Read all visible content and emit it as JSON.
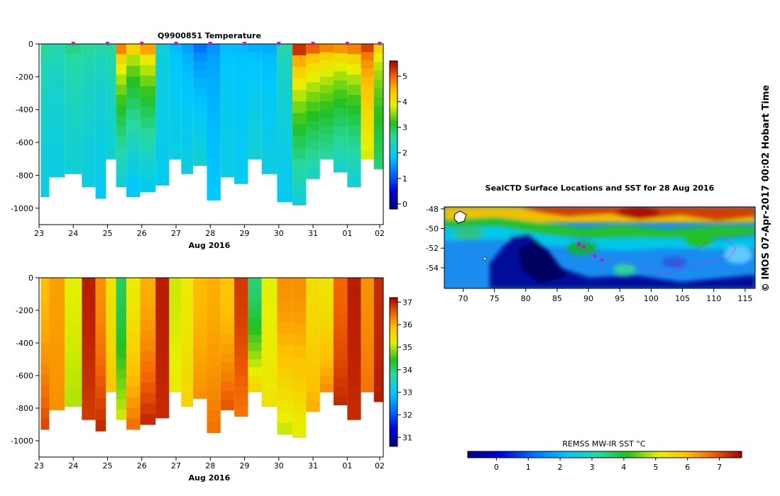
{
  "chart_data": [
    {
      "type": "heatmap",
      "title": "Q9900851  Temperature",
      "xlabel": "Aug 2016",
      "x_ticks": [
        "23",
        "24",
        "25",
        "26",
        "27",
        "28",
        "29",
        "30",
        "31",
        "01",
        "02"
      ],
      "y_ticks": [
        "0",
        "-200",
        "-400",
        "-600",
        "-800",
        "-1000"
      ],
      "ylim": [
        -1100,
        0
      ],
      "colorbar": {
        "ticks": [
          "0",
          "1",
          "2",
          "3",
          "4",
          "5"
        ],
        "range": [
          -0.2,
          5.6
        ]
      },
      "profiles": [
        {
          "x": 23.1,
          "bottom": -930,
          "top_value": 2.6,
          "deep_value": 2.1
        },
        {
          "x": 23.5,
          "bottom": -810,
          "top_value": 2.5,
          "deep_value": 2.1
        },
        {
          "x": 24.0,
          "bottom": -790,
          "top_value": 2.7,
          "deep_value": 2.2
        },
        {
          "x": 24.5,
          "bottom": -870,
          "top_value": 2.6,
          "deep_value": 2.1
        },
        {
          "x": 24.8,
          "bottom": -940,
          "top_value": 2.5,
          "deep_value": 2.0
        },
        {
          "x": 25.1,
          "bottom": -700,
          "top_value": 2.6,
          "deep_value": 2.2
        },
        {
          "x": 25.4,
          "bottom": -870,
          "top_value": 4.8,
          "deep_value": 2.2
        },
        {
          "x": 25.7,
          "bottom": -930,
          "top_value": 4.2,
          "deep_value": 1.9
        },
        {
          "x": 26.2,
          "bottom": -900,
          "top_value": 4.6,
          "deep_value": 2.0
        },
        {
          "x": 26.6,
          "bottom": -860,
          "top_value": 2.2,
          "deep_value": 2.0
        },
        {
          "x": 27.0,
          "bottom": -700,
          "top_value": 1.8,
          "deep_value": 2.1
        },
        {
          "x": 27.3,
          "bottom": -790,
          "top_value": 1.6,
          "deep_value": 2.1
        },
        {
          "x": 27.7,
          "bottom": -740,
          "top_value": 1.2,
          "deep_value": 2.2
        },
        {
          "x": 28.1,
          "bottom": -950,
          "top_value": 1.5,
          "deep_value": 1.9
        },
        {
          "x": 28.5,
          "bottom": -810,
          "top_value": 1.8,
          "deep_value": 2.1
        },
        {
          "x": 28.9,
          "bottom": -850,
          "top_value": 1.8,
          "deep_value": 2.0
        },
        {
          "x": 29.3,
          "bottom": -700,
          "top_value": 1.7,
          "deep_value": 2.2
        },
        {
          "x": 29.7,
          "bottom": -790,
          "top_value": 1.7,
          "deep_value": 2.1
        },
        {
          "x": 30.2,
          "bottom": -960,
          "top_value": 2.5,
          "deep_value": 2.0
        },
        {
          "x": 30.6,
          "bottom": -980,
          "top_value": 5.3,
          "deep_value": 2.2
        },
        {
          "x": 31.0,
          "bottom": -820,
          "top_value": 5.0,
          "deep_value": 2.4
        },
        {
          "x": 31.4,
          "bottom": -700,
          "top_value": 4.8,
          "deep_value": 2.6
        },
        {
          "x": 31.8,
          "bottom": -780,
          "top_value": 4.7,
          "deep_value": 2.3
        },
        {
          "x": 32.2,
          "bottom": -870,
          "top_value": 4.8,
          "deep_value": 2.2
        },
        {
          "x": 32.6,
          "bottom": -700,
          "top_value": 5.2,
          "deep_value": 3.8
        },
        {
          "x": 32.95,
          "bottom": -760,
          "top_value": 4.2,
          "deep_value": 2.8
        }
      ]
    },
    {
      "type": "heatmap",
      "title": "",
      "xlabel": "Aug 2016",
      "x_ticks": [
        "23",
        "24",
        "25",
        "26",
        "27",
        "28",
        "29",
        "30",
        "31",
        "01",
        "02"
      ],
      "y_ticks": [
        "0",
        "-200",
        "-400",
        "-600",
        "-800",
        "-1000"
      ],
      "ylim": [
        -1100,
        0
      ],
      "colorbar": {
        "ticks": [
          "31",
          "32",
          "33",
          "34",
          "35",
          "36",
          "37"
        ],
        "range": [
          30.6,
          37.2
        ]
      },
      "profiles": [
        {
          "x": 23.1,
          "bottom": -930,
          "top_value": 35.9,
          "deep_value": 36.7
        },
        {
          "x": 23.5,
          "bottom": -810,
          "top_value": 36.1,
          "deep_value": 36.2
        },
        {
          "x": 24.0,
          "bottom": -790,
          "top_value": 35.2,
          "deep_value": 35.0
        },
        {
          "x": 24.5,
          "bottom": -870,
          "top_value": 37.0,
          "deep_value": 36.8
        },
        {
          "x": 24.8,
          "bottom": -940,
          "top_value": 36.2,
          "deep_value": 36.9
        },
        {
          "x": 25.1,
          "bottom": -700,
          "top_value": 35.4,
          "deep_value": 35.8
        },
        {
          "x": 25.4,
          "bottom": -870,
          "top_value": 34.1,
          "deep_value": 35.1
        },
        {
          "x": 25.7,
          "bottom": -930,
          "top_value": 35.3,
          "deep_value": 36.4
        },
        {
          "x": 26.2,
          "bottom": -900,
          "top_value": 36.0,
          "deep_value": 36.9
        },
        {
          "x": 26.6,
          "bottom": -860,
          "top_value": 37.0,
          "deep_value": 36.9
        },
        {
          "x": 27.0,
          "bottom": -700,
          "top_value": 35.1,
          "deep_value": 35.3
        },
        {
          "x": 27.3,
          "bottom": -790,
          "top_value": 35.3,
          "deep_value": 35.6
        },
        {
          "x": 27.7,
          "bottom": -740,
          "top_value": 35.9,
          "deep_value": 36.2
        },
        {
          "x": 28.1,
          "bottom": -950,
          "top_value": 36.0,
          "deep_value": 36.4
        },
        {
          "x": 28.5,
          "bottom": -810,
          "top_value": 35.8,
          "deep_value": 36.6
        },
        {
          "x": 28.9,
          "bottom": -850,
          "top_value": 36.8,
          "deep_value": 36.4
        },
        {
          "x": 29.3,
          "bottom": -700,
          "top_value": 34.0,
          "deep_value": 35.6
        },
        {
          "x": 29.7,
          "bottom": -790,
          "top_value": 35.2,
          "deep_value": 35.4
        },
        {
          "x": 30.2,
          "bottom": -960,
          "top_value": 36.2,
          "deep_value": 35.1
        },
        {
          "x": 30.6,
          "bottom": -980,
          "top_value": 36.2,
          "deep_value": 35.2
        },
        {
          "x": 31.0,
          "bottom": -820,
          "top_value": 35.5,
          "deep_value": 36.0
        },
        {
          "x": 31.4,
          "bottom": -700,
          "top_value": 35.4,
          "deep_value": 36.2
        },
        {
          "x": 31.8,
          "bottom": -780,
          "top_value": 36.5,
          "deep_value": 36.9
        },
        {
          "x": 32.2,
          "bottom": -870,
          "top_value": 37.0,
          "deep_value": 36.9
        },
        {
          "x": 32.6,
          "bottom": -700,
          "top_value": 36.2,
          "deep_value": 36.4
        },
        {
          "x": 32.95,
          "bottom": -760,
          "top_value": 36.9,
          "deep_value": 37.0
        }
      ]
    },
    {
      "type": "heatmap",
      "title": "SealCTD Surface Locations and SST for 28 Aug 2016",
      "x_ticks": [
        "70",
        "75",
        "80",
        "85",
        "90",
        "95",
        "100",
        "105",
        "110",
        "115"
      ],
      "y_ticks": [
        "-48",
        "-50",
        "-52",
        "-54"
      ],
      "xlim": [
        67,
        116.6
      ],
      "ylim": [
        -56.1,
        -47.8
      ],
      "colorbar": {
        "label": "REMSS MW-IR SST °C",
        "ticks": [
          "0",
          "1",
          "2",
          "3",
          "4",
          "5",
          "6",
          "7"
        ],
        "range": [
          -0.9,
          7.7
        ]
      },
      "track": [
        [
          88.5,
          -51.6
        ],
        [
          89.2,
          -52.0
        ],
        [
          90.0,
          -52.4
        ],
        [
          91.0,
          -52.8
        ],
        [
          92.2,
          -53.2
        ],
        [
          93.5,
          -53.3
        ],
        [
          95.0,
          -53.5
        ],
        [
          97.5,
          -53.8
        ],
        [
          100.0,
          -54.0
        ],
        [
          102.5,
          -54.0
        ],
        [
          104.0,
          -53.8
        ],
        [
          105.0,
          -53.2
        ],
        [
          106.0,
          -52.7
        ],
        [
          107.5,
          -52.0
        ],
        [
          109.0,
          -51.5
        ],
        [
          110.5,
          -51.1
        ],
        [
          112.0,
          -51.1
        ],
        [
          113.5,
          -52.0
        ],
        [
          112.5,
          -53.0
        ],
        [
          110.0,
          -53.3
        ],
        [
          107.0,
          -53.7
        ],
        [
          105.5,
          -54.1
        ],
        [
          103.0,
          -54.6
        ],
        [
          100.0,
          -54.7
        ]
      ],
      "recent_locations": [
        [
          88.5,
          -51.6
        ],
        [
          89.3,
          -51.9
        ],
        [
          91.0,
          -52.8
        ],
        [
          92.2,
          -53.2
        ],
        [
          104.2,
          -53.8
        ]
      ]
    }
  ],
  "sidebar": {
    "stamp": "© IMOS 07-Apr-2017 00:02 Hobart Time"
  }
}
